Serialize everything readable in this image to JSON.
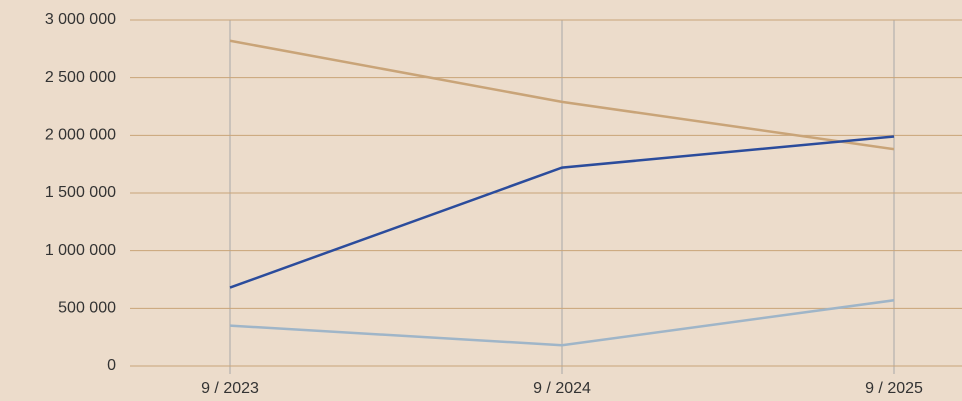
{
  "chart_data": {
    "type": "line",
    "categories": [
      "9 / 2023",
      "9 / 2024",
      "9 / 2025"
    ],
    "series": [
      {
        "color": "#c9a478",
        "values": [
          2820000,
          2290000,
          1880000
        ]
      },
      {
        "color": "#2b4c9c",
        "values": [
          680000,
          1720000,
          1990000
        ]
      },
      {
        "color": "#9fb5c8",
        "values": [
          350000,
          180000,
          570000
        ]
      }
    ],
    "ylim": [
      0,
      3000000
    ],
    "yticks": [
      0,
      {
        "value": 500000,
        "label": "500 000"
      },
      {
        "value": 1000000,
        "label": "1 000 000"
      },
      {
        "value": 1500000,
        "label": "1 500 000"
      },
      {
        "value": 2000000,
        "label": "2 000 000"
      },
      {
        "value": 2500000,
        "label": "2 500 000"
      },
      {
        "value": 3000000,
        "label": "3 000 000"
      }
    ],
    "grid": true
  }
}
